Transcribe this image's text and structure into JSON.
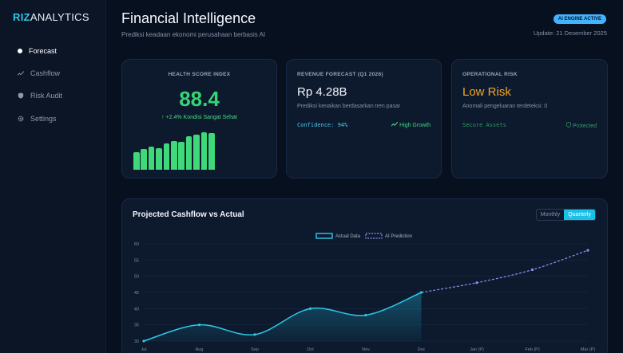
{
  "brand": {
    "prefix": "RIZ",
    "suffix": "ANALYTICS"
  },
  "sidebar": {
    "items": [
      {
        "label": "Forecast",
        "icon": "dot-icon",
        "active": true
      },
      {
        "label": "Cashflow",
        "icon": "trend-icon",
        "active": false
      },
      {
        "label": "Risk Audit",
        "icon": "shield-icon",
        "active": false
      },
      {
        "label": "Settings",
        "icon": "gear-icon",
        "active": false
      }
    ]
  },
  "header": {
    "title": "Financial Intelligence",
    "subtitle": "Prediksi keadaan ekonomi perusahaan berbasis AI",
    "badge": "AI ENGINE ACTIVE",
    "update": "Update: 21 Desember 2025"
  },
  "health": {
    "heading": "HEALTH SCORE INDEX",
    "score": "88.4",
    "change": "↑ +2.4% Kondisi Sangat Sehat",
    "bar_levels": [
      0.42,
      0.5,
      0.56,
      0.52,
      0.64,
      0.7,
      0.68,
      0.8,
      0.84,
      0.9,
      0.88
    ]
  },
  "revenue": {
    "heading": "REVENUE FORECAST (Q1 2026)",
    "value": "Rp 4.28B",
    "description": "Prediksi kenaikan berdasarkan tren pasar",
    "confidence": "Confidence: 94%",
    "growth": "High Growth"
  },
  "risk": {
    "heading": "OPERATIONAL RISK",
    "value": "Low Risk",
    "description": "Anomali pengeluaran terdeteksi: 0",
    "secure": "Secure Assets",
    "protected": "Protected"
  },
  "chart_panel": {
    "title": "Projected Cashflow vs Actual",
    "toggle": {
      "monthly": "Monthly",
      "quarterly": "Quarterly"
    }
  },
  "colors": {
    "accent": "#19c0e8",
    "positive": "#3fd97a",
    "warning": "#f3a623"
  },
  "chart_data": {
    "type": "line",
    "categories": [
      "Jul",
      "Aug",
      "Sep",
      "Oct",
      "Nov",
      "Dec",
      "Jan (P)",
      "Feb (P)",
      "Mar (P)"
    ],
    "series": [
      {
        "name": "Actual Data",
        "values": [
          30,
          35,
          32,
          40,
          38,
          45,
          null,
          null,
          null
        ]
      },
      {
        "name": "AI Prediction",
        "values": [
          null,
          null,
          null,
          null,
          null,
          45,
          48,
          52,
          58
        ]
      }
    ],
    "ylim": [
      30,
      60
    ],
    "yticks": [
      30,
      35,
      40,
      45,
      50,
      55,
      60
    ],
    "legend": "top-center",
    "grid": true
  }
}
